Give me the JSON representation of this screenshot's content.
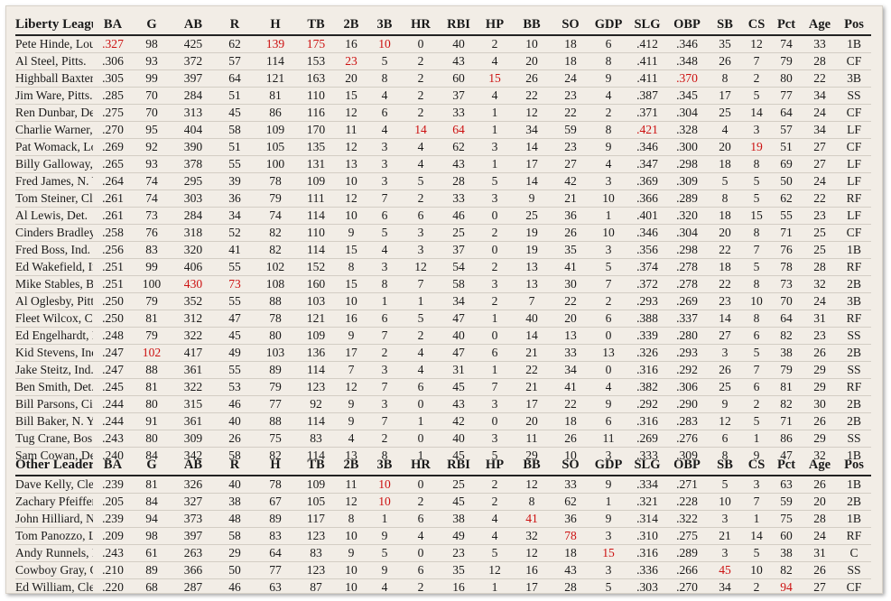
{
  "colors": {
    "highlight": "#cc1111",
    "background": "#f2ede6"
  },
  "columns": [
    "BA",
    "G",
    "AB",
    "R",
    "H",
    "TB",
    "2B",
    "3B",
    "HR",
    "RBI",
    "HP",
    "BB",
    "SO",
    "GDP",
    "SLG",
    "OBP",
    "SB",
    "CS",
    "Pct",
    "Age",
    "Pos"
  ],
  "sections": [
    {
      "title": "Liberty League",
      "rows": [
        {
          "name": "Pete Hinde, Lou.",
          "values": [
            ".327",
            "98",
            "425",
            "62",
            "139",
            "175",
            "16",
            "10",
            "0",
            "40",
            "2",
            "10",
            "18",
            "6",
            ".412",
            ".346",
            "35",
            "12",
            "74",
            "33",
            "1B"
          ],
          "red": [
            0,
            4,
            5,
            7
          ]
        },
        {
          "name": "Al Steel, Pitts.",
          "values": [
            ".306",
            "93",
            "372",
            "57",
            "114",
            "153",
            "23",
            "5",
            "2",
            "43",
            "4",
            "20",
            "18",
            "8",
            ".411",
            ".348",
            "26",
            "7",
            "79",
            "28",
            "CF"
          ],
          "red": [
            6
          ]
        },
        {
          "name": "Highball Baxter, Bos.",
          "values": [
            ".305",
            "99",
            "397",
            "64",
            "121",
            "163",
            "20",
            "8",
            "2",
            "60",
            "15",
            "26",
            "24",
            "9",
            ".411",
            ".370",
            "8",
            "2",
            "80",
            "22",
            "3B"
          ],
          "red": [
            10,
            15
          ]
        },
        {
          "name": "Jim Ware, Pitts.",
          "values": [
            ".285",
            "70",
            "284",
            "51",
            "81",
            "110",
            "15",
            "4",
            "2",
            "37",
            "4",
            "22",
            "23",
            "4",
            ".387",
            ".345",
            "17",
            "5",
            "77",
            "34",
            "SS"
          ],
          "red": []
        },
        {
          "name": "Ren Dunbar, Det. ®",
          "values": [
            ".275",
            "70",
            "313",
            "45",
            "86",
            "116",
            "12",
            "6",
            "2",
            "33",
            "1",
            "12",
            "22",
            "2",
            ".371",
            ".304",
            "25",
            "14",
            "64",
            "24",
            "CF"
          ],
          "red": []
        },
        {
          "name": "Charlie Warner, Bos.",
          "values": [
            ".270",
            "95",
            "404",
            "58",
            "109",
            "170",
            "11",
            "4",
            "14",
            "64",
            "1",
            "34",
            "59",
            "8",
            ".421",
            ".328",
            "4",
            "3",
            "57",
            "34",
            "LF"
          ],
          "red": [
            8,
            9,
            14
          ]
        },
        {
          "name": "Pat Womack, Lou.",
          "values": [
            ".269",
            "92",
            "390",
            "51",
            "105",
            "135",
            "12",
            "3",
            "4",
            "62",
            "3",
            "14",
            "23",
            "9",
            ".346",
            ".300",
            "20",
            "19",
            "51",
            "27",
            "CF"
          ],
          "red": [
            17
          ]
        },
        {
          "name": "Billy Galloway, Pitts.",
          "values": [
            ".265",
            "93",
            "378",
            "55",
            "100",
            "131",
            "13",
            "3",
            "4",
            "43",
            "1",
            "17",
            "27",
            "4",
            ".347",
            ".298",
            "18",
            "8",
            "69",
            "27",
            "LF"
          ],
          "red": []
        },
        {
          "name": "Fred James, N. Y.",
          "values": [
            ".264",
            "74",
            "295",
            "39",
            "78",
            "109",
            "10",
            "3",
            "5",
            "28",
            "5",
            "14",
            "42",
            "3",
            ".369",
            ".309",
            "5",
            "5",
            "50",
            "24",
            "LF"
          ],
          "red": []
        },
        {
          "name": "Tom Steiner, Clev.",
          "values": [
            ".261",
            "74",
            "303",
            "36",
            "79",
            "111",
            "12",
            "7",
            "2",
            "33",
            "3",
            "9",
            "21",
            "10",
            ".366",
            ".289",
            "8",
            "5",
            "62",
            "22",
            "RF"
          ],
          "red": []
        },
        {
          "name": "Al Lewis, Det.",
          "values": [
            ".261",
            "73",
            "284",
            "34",
            "74",
            "114",
            "10",
            "6",
            "6",
            "46",
            "0",
            "25",
            "36",
            "1",
            ".401",
            ".320",
            "18",
            "15",
            "55",
            "23",
            "LF"
          ],
          "red": []
        },
        {
          "name": "Cinders Bradley, N. Y.",
          "values": [
            ".258",
            "76",
            "318",
            "52",
            "82",
            "110",
            "9",
            "5",
            "3",
            "25",
            "2",
            "19",
            "26",
            "10",
            ".346",
            ".304",
            "20",
            "8",
            "71",
            "25",
            "CF"
          ],
          "red": []
        },
        {
          "name": "Fred Boss, Ind.",
          "values": [
            ".256",
            "83",
            "320",
            "41",
            "82",
            "114",
            "15",
            "4",
            "3",
            "37",
            "0",
            "19",
            "35",
            "3",
            ".356",
            ".298",
            "22",
            "7",
            "76",
            "25",
            "1B"
          ],
          "red": []
        },
        {
          "name": "Ed Wakefield, Ind.",
          "values": [
            ".251",
            "99",
            "406",
            "55",
            "102",
            "152",
            "8",
            "3",
            "12",
            "54",
            "2",
            "13",
            "41",
            "5",
            ".374",
            ".278",
            "18",
            "5",
            "78",
            "28",
            "RF"
          ],
          "red": []
        },
        {
          "name": "Mike Stables, Bos.",
          "values": [
            ".251",
            "100",
            "430",
            "73",
            "108",
            "160",
            "15",
            "8",
            "7",
            "58",
            "3",
            "13",
            "30",
            "7",
            ".372",
            ".278",
            "22",
            "8",
            "73",
            "32",
            "2B"
          ],
          "red": [
            2,
            3
          ]
        },
        {
          "name": "Al Oglesby, Pitts.",
          "values": [
            ".250",
            "79",
            "352",
            "55",
            "88",
            "103",
            "10",
            "1",
            "1",
            "34",
            "2",
            "7",
            "22",
            "2",
            ".293",
            ".269",
            "23",
            "10",
            "70",
            "24",
            "3B"
          ],
          "red": []
        },
        {
          "name": "Fleet Wilcox, Cin.",
          "values": [
            ".250",
            "81",
            "312",
            "47",
            "78",
            "121",
            "16",
            "6",
            "5",
            "47",
            "1",
            "40",
            "20",
            "6",
            ".388",
            ".337",
            "14",
            "8",
            "64",
            "31",
            "RF"
          ],
          "red": []
        },
        {
          "name": "Ed Engelhardt, Det.",
          "values": [
            ".248",
            "79",
            "322",
            "45",
            "80",
            "109",
            "9",
            "7",
            "2",
            "40",
            "0",
            "14",
            "13",
            "0",
            ".339",
            ".280",
            "27",
            "6",
            "82",
            "23",
            "SS"
          ],
          "red": []
        },
        {
          "name": "Kid Stevens, Ind.",
          "values": [
            ".247",
            "102",
            "417",
            "49",
            "103",
            "136",
            "17",
            "2",
            "4",
            "47",
            "6",
            "21",
            "33",
            "13",
            ".326",
            ".293",
            "3",
            "5",
            "38",
            "26",
            "2B"
          ],
          "red": [
            1
          ]
        },
        {
          "name": "Jake Steitz, Ind.",
          "values": [
            ".247",
            "88",
            "361",
            "55",
            "89",
            "114",
            "7",
            "3",
            "4",
            "31",
            "1",
            "22",
            "34",
            "0",
            ".316",
            ".292",
            "26",
            "7",
            "79",
            "29",
            "SS"
          ],
          "red": []
        },
        {
          "name": "Ben Smith, Det.",
          "values": [
            ".245",
            "81",
            "322",
            "53",
            "79",
            "123",
            "12",
            "7",
            "6",
            "45",
            "7",
            "21",
            "41",
            "4",
            ".382",
            ".306",
            "25",
            "6",
            "81",
            "29",
            "RF"
          ],
          "red": []
        },
        {
          "name": "Bill Parsons, Cin.",
          "values": [
            ".244",
            "80",
            "315",
            "46",
            "77",
            "92",
            "9",
            "3",
            "0",
            "43",
            "3",
            "17",
            "22",
            "9",
            ".292",
            ".290",
            "9",
            "2",
            "82",
            "30",
            "2B"
          ],
          "red": []
        },
        {
          "name": "Bill Baker, N. Y.",
          "values": [
            ".244",
            "91",
            "361",
            "40",
            "88",
            "114",
            "9",
            "7",
            "1",
            "42",
            "0",
            "20",
            "18",
            "6",
            ".316",
            ".283",
            "12",
            "5",
            "71",
            "26",
            "2B"
          ],
          "red": []
        },
        {
          "name": "Tug Crane, Bos.",
          "values": [
            ".243",
            "80",
            "309",
            "26",
            "75",
            "83",
            "4",
            "2",
            "0",
            "40",
            "3",
            "11",
            "26",
            "11",
            ".269",
            ".276",
            "6",
            "1",
            "86",
            "29",
            "SS"
          ],
          "red": []
        },
        {
          "name": "Sam Cowan, Det.",
          "values": [
            ".240",
            "84",
            "342",
            "58",
            "82",
            "114",
            "13",
            "8",
            "1",
            "45",
            "5",
            "29",
            "10",
            "3",
            ".333",
            ".309",
            "8",
            "9",
            "47",
            "32",
            "1B"
          ],
          "red": []
        }
      ]
    },
    {
      "title": "Other Leaders",
      "rows": [
        {
          "name": "Dave Kelly, Clev.",
          "values": [
            ".239",
            "81",
            "326",
            "40",
            "78",
            "109",
            "11",
            "10",
            "0",
            "25",
            "2",
            "12",
            "33",
            "9",
            ".334",
            ".271",
            "5",
            "3",
            "63",
            "26",
            "1B"
          ],
          "red": [
            7
          ]
        },
        {
          "name": "Zachary Pfeiffer, Clev. ®",
          "values": [
            ".205",
            "84",
            "327",
            "38",
            "67",
            "105",
            "12",
            "10",
            "2",
            "45",
            "2",
            "8",
            "62",
            "1",
            ".321",
            ".228",
            "10",
            "7",
            "59",
            "20",
            "2B"
          ],
          "red": [
            7
          ]
        },
        {
          "name": "John Hilliard, N. Y.",
          "values": [
            ".239",
            "94",
            "373",
            "48",
            "89",
            "117",
            "8",
            "1",
            "6",
            "38",
            "4",
            "41",
            "36",
            "9",
            ".314",
            ".322",
            "3",
            "1",
            "75",
            "28",
            "1B"
          ],
          "red": [
            11
          ]
        },
        {
          "name": "Tom Panozzo, Lou. ®",
          "values": [
            ".209",
            "98",
            "397",
            "58",
            "83",
            "123",
            "10",
            "9",
            "4",
            "49",
            "4",
            "32",
            "78",
            "3",
            ".310",
            ".275",
            "21",
            "14",
            "60",
            "24",
            "RF"
          ],
          "red": [
            12
          ]
        },
        {
          "name": "Andy Runnels, Lou.",
          "values": [
            ".243",
            "61",
            "263",
            "29",
            "64",
            "83",
            "9",
            "5",
            "0",
            "23",
            "5",
            "12",
            "18",
            "15",
            ".316",
            ".289",
            "3",
            "5",
            "38",
            "31",
            "C"
          ],
          "red": [
            13
          ]
        },
        {
          "name": "Cowboy Gray, Clev.",
          "values": [
            ".210",
            "89",
            "366",
            "50",
            "77",
            "123",
            "10",
            "9",
            "6",
            "35",
            "12",
            "16",
            "43",
            "3",
            ".336",
            ".266",
            "45",
            "10",
            "82",
            "26",
            "SS"
          ],
          "red": [
            16
          ]
        },
        {
          "name": "Ed William, Clev.",
          "values": [
            ".220",
            "68",
            "287",
            "46",
            "63",
            "87",
            "10",
            "4",
            "2",
            "16",
            "1",
            "17",
            "28",
            "5",
            ".303",
            ".270",
            "34",
            "2",
            "94",
            "27",
            "CF"
          ],
          "red": [
            18
          ]
        }
      ]
    }
  ]
}
